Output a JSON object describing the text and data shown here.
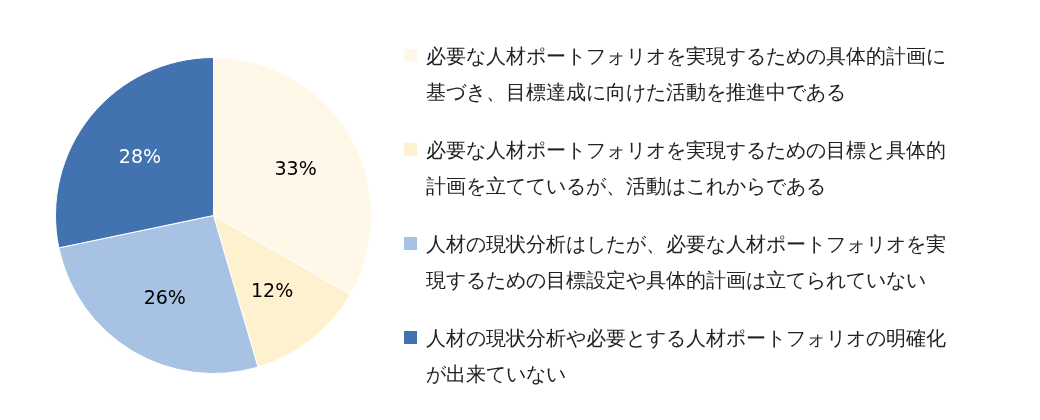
{
  "chart_data": {
    "type": "pie",
    "categories": [
      "必要な人材ポートフォリオを実現するための具体的計画に基づき、目標達成に向けた活動を推進中である",
      "必要な人材ポートフォリオを実現するための目標と具体的計画を立てているが、活動はこれからである",
      "人材の現状分析はしたが、必要な人材ポートフォリオを実現するための目標設定や具体的計画は立てられていない",
      "人材の現状分析や必要とする人材ポートフォリオの明確化が出来ていない"
    ],
    "values": [
      33,
      12,
      26,
      28
    ],
    "colors": [
      "#fff8e8",
      "#fdf1cf",
      "#a7c2e3",
      "#4273b0"
    ],
    "value_labels": [
      "33%",
      "12%",
      "26%",
      "28%"
    ],
    "legend": "right"
  }
}
